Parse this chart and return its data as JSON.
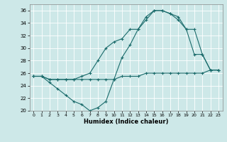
{
  "xlabel": "Humidex (Indice chaleur)",
  "xlim": [
    -0.5,
    23.5
  ],
  "ylim": [
    20,
    37
  ],
  "yticks": [
    20,
    22,
    24,
    26,
    28,
    30,
    32,
    34,
    36
  ],
  "xticks": [
    0,
    1,
    2,
    3,
    4,
    5,
    6,
    7,
    8,
    9,
    10,
    11,
    12,
    13,
    14,
    15,
    16,
    17,
    18,
    19,
    20,
    21,
    22,
    23
  ],
  "bg_color": "#cde8e8",
  "grid_color": "#b0d0d0",
  "line_color": "#1a6b6b",
  "line1_x": [
    0,
    1,
    2,
    3,
    4,
    5,
    6,
    7,
    8,
    9,
    10,
    11,
    12,
    13,
    14,
    15,
    16,
    17,
    18,
    19,
    20,
    21,
    22,
    23
  ],
  "line1_y": [
    25.5,
    25.5,
    25.0,
    25.0,
    25.0,
    25.0,
    25.0,
    25.0,
    25.0,
    25.0,
    25.0,
    25.5,
    25.5,
    25.5,
    26.0,
    26.0,
    26.0,
    26.0,
    26.0,
    26.0,
    26.0,
    26.0,
    26.5,
    26.5
  ],
  "line2_x": [
    0,
    1,
    2,
    3,
    4,
    5,
    6,
    7,
    8,
    9,
    10,
    11,
    12,
    13,
    14,
    15,
    16,
    17,
    18,
    19,
    20,
    21,
    22,
    23
  ],
  "line2_y": [
    25.5,
    25.5,
    25.0,
    25.0,
    25.0,
    25.0,
    25.5,
    26.0,
    28.0,
    30.0,
    31.0,
    31.5,
    33.0,
    33.0,
    35.0,
    36.0,
    36.0,
    35.5,
    34.5,
    33.0,
    33.0,
    29.0,
    26.5,
    26.5
  ],
  "line3_x": [
    0,
    1,
    2,
    3,
    4,
    5,
    6,
    7,
    8,
    9,
    10,
    11,
    12,
    13,
    14,
    15,
    16,
    17,
    18,
    19,
    20,
    21,
    22,
    23
  ],
  "line3_y": [
    25.5,
    25.5,
    24.5,
    23.5,
    22.5,
    21.5,
    21.0,
    20.0,
    20.5,
    21.5,
    25.0,
    28.5,
    30.5,
    33.0,
    34.5,
    36.0,
    36.0,
    35.5,
    35.0,
    33.0,
    29.0,
    29.0,
    26.5,
    26.5
  ]
}
